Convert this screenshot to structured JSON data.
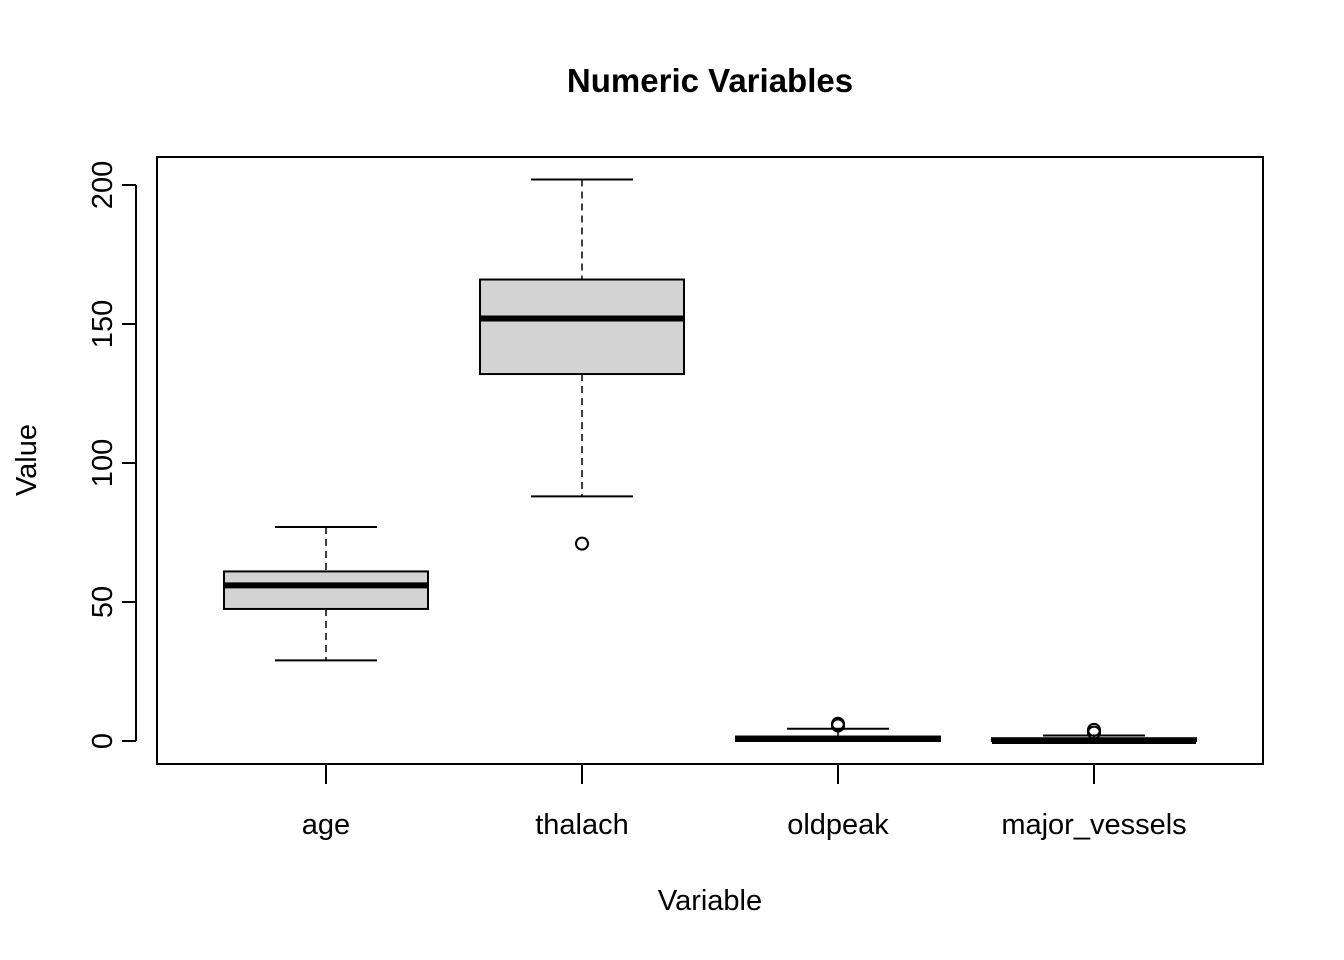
{
  "chart_data": {
    "type": "boxplot",
    "title": "Numeric Variables",
    "xlabel": "Variable",
    "ylabel": "Value",
    "ylim": [
      -8,
      210
    ],
    "yticks": [
      0,
      50,
      100,
      150,
      200
    ],
    "box_fill": "#d3d3d3",
    "categories": [
      "age",
      "thalach",
      "oldpeak",
      "major_vessels"
    ],
    "boxes": [
      {
        "name": "age",
        "whisker_low": 29,
        "q1": 47.5,
        "median": 56,
        "q3": 61,
        "whisker_high": 77,
        "outliers": []
      },
      {
        "name": "thalach",
        "whisker_low": 88,
        "q1": 132,
        "median": 152,
        "q3": 166,
        "whisker_high": 202,
        "outliers": [
          71
        ]
      },
      {
        "name": "oldpeak",
        "whisker_low": 0,
        "q1": 0,
        "median": 0.8,
        "q3": 1.6,
        "whisker_high": 4.4,
        "outliers": [
          5.6,
          6.2,
          5.6
        ]
      },
      {
        "name": "major_vessels",
        "whisker_low": 0,
        "q1": 0,
        "median": 0,
        "q3": 1,
        "whisker_high": 2,
        "outliers": [
          3,
          4
        ]
      }
    ]
  }
}
